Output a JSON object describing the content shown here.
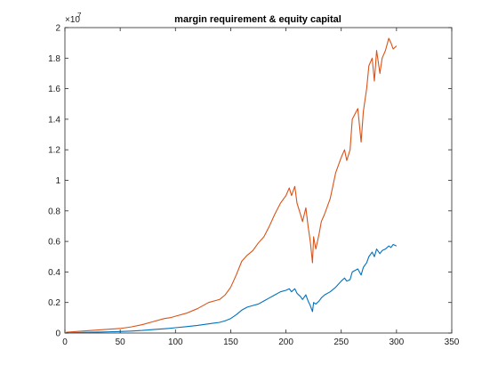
{
  "chart_data": {
    "type": "line",
    "title": "margin requirement & equity capital",
    "xlabel": "",
    "ylabel": "",
    "xlim": [
      0,
      350
    ],
    "ylim": [
      0,
      20000000
    ],
    "y_scale_exponent_label": "×10",
    "y_scale_exponent": "7",
    "xticks": [
      0,
      50,
      100,
      150,
      200,
      250,
      300,
      350
    ],
    "xtick_labels": [
      "0",
      "50",
      "100",
      "150",
      "200",
      "250",
      "300",
      "350"
    ],
    "yticks": [
      0,
      2000000,
      4000000,
      6000000,
      8000000,
      10000000,
      12000000,
      14000000,
      16000000,
      18000000,
      20000000
    ],
    "ytick_labels": [
      "0",
      "0.2",
      "0.4",
      "0.6",
      "0.8",
      "1",
      "1.2",
      "1.4",
      "1.6",
      "1.8",
      "2"
    ],
    "grid": false,
    "series": [
      {
        "color": "#D95319",
        "x": [
          1,
          10,
          20,
          30,
          40,
          50,
          60,
          70,
          80,
          90,
          95,
          100,
          110,
          120,
          130,
          135,
          140,
          145,
          150,
          155,
          160,
          165,
          170,
          175,
          180,
          185,
          190,
          195,
          200,
          203,
          205,
          208,
          210,
          213,
          215,
          218,
          220,
          222,
          224,
          225,
          227,
          230,
          232,
          235,
          240,
          245,
          250,
          253,
          255,
          258,
          260,
          265,
          268,
          270,
          273,
          275,
          278,
          280,
          282,
          285,
          287,
          290,
          293,
          295,
          297,
          300
        ],
        "y": [
          50000,
          100000,
          150000,
          200000,
          250000,
          300000,
          400000,
          550000,
          750000,
          950000,
          1000000,
          1100000,
          1300000,
          1600000,
          2000000,
          2100000,
          2200000,
          2500000,
          3000000,
          3800000,
          4700000,
          5100000,
          5400000,
          5900000,
          6300000,
          7000000,
          7800000,
          8500000,
          9000000,
          9500000,
          9000000,
          9600000,
          8500000,
          7800000,
          7300000,
          8200000,
          7000000,
          6000000,
          4600000,
          6300000,
          5500000,
          6500000,
          7300000,
          7800000,
          8800000,
          10500000,
          11500000,
          12000000,
          11300000,
          12000000,
          14000000,
          14700000,
          12500000,
          14500000,
          16000000,
          17500000,
          18000000,
          16500000,
          18500000,
          17000000,
          18000000,
          18500000,
          19300000,
          19000000,
          18600000,
          18800000
        ]
      },
      {
        "color": "#0072BD",
        "x": [
          1,
          10,
          20,
          30,
          40,
          50,
          60,
          70,
          80,
          90,
          95,
          100,
          110,
          120,
          130,
          135,
          140,
          145,
          150,
          155,
          160,
          165,
          170,
          175,
          180,
          185,
          190,
          195,
          200,
          203,
          205,
          208,
          210,
          213,
          215,
          218,
          220,
          222,
          224,
          225,
          227,
          230,
          232,
          235,
          240,
          245,
          250,
          253,
          255,
          258,
          260,
          265,
          268,
          270,
          273,
          275,
          278,
          280,
          282,
          285,
          287,
          290,
          293,
          295,
          297,
          300
        ],
        "y": [
          10000,
          30000,
          50000,
          60000,
          80000,
          100000,
          130000,
          170000,
          230000,
          280000,
          310000,
          350000,
          420000,
          500000,
          600000,
          650000,
          700000,
          800000,
          950000,
          1200000,
          1500000,
          1700000,
          1800000,
          1900000,
          2100000,
          2300000,
          2500000,
          2700000,
          2800000,
          2900000,
          2700000,
          2900000,
          2600000,
          2400000,
          2200000,
          2500000,
          2100000,
          1800000,
          1400000,
          2000000,
          1900000,
          2100000,
          2300000,
          2500000,
          2700000,
          3000000,
          3400000,
          3600000,
          3400000,
          3500000,
          4000000,
          4200000,
          3800000,
          4300000,
          4600000,
          5000000,
          5300000,
          5000000,
          5500000,
          5200000,
          5400000,
          5500000,
          5700000,
          5600000,
          5800000,
          5700000
        ]
      }
    ]
  }
}
